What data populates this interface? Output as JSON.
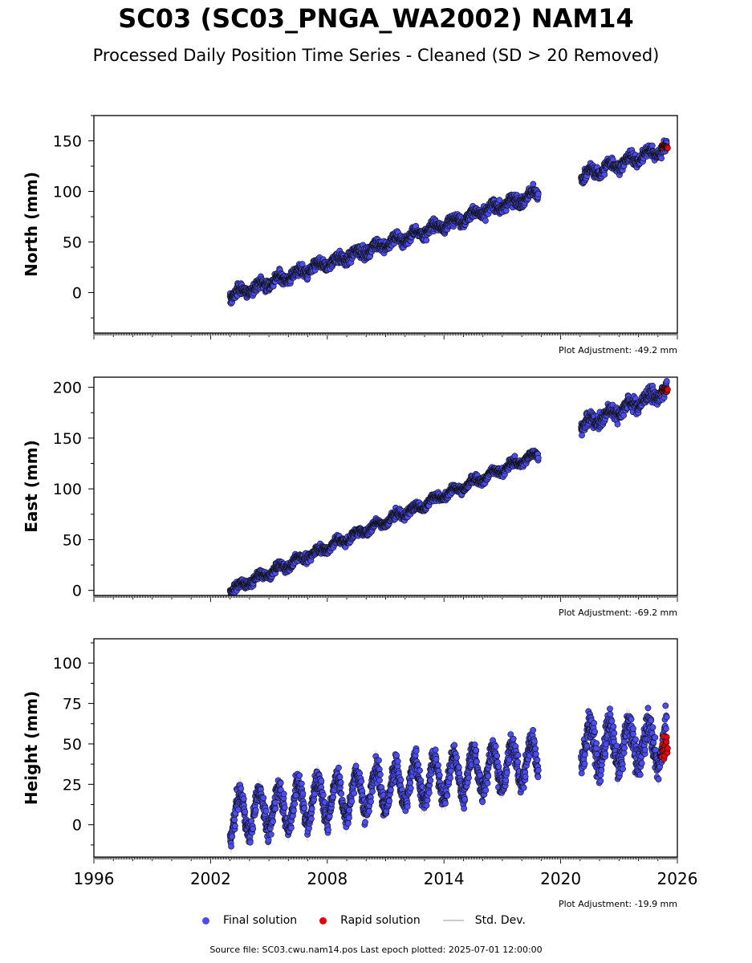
{
  "header": {
    "title": "SC03 (SC03_PNGA_WA2002) NAM14",
    "subtitle": "Processed Daily Position Time Series - Cleaned (SD > 20 Removed)"
  },
  "colors": {
    "final": "#4b4cf2",
    "rapid": "#e8000a",
    "stddev": "#bbbbbb",
    "edge": "#111111"
  },
  "chart_data": [
    {
      "type": "scatter",
      "name": "north",
      "ylabel": "North (mm)",
      "ylim": [
        -40,
        175
      ],
      "yticks": [
        0,
        50,
        100,
        150
      ],
      "xlim": [
        1996.0,
        2026.0
      ],
      "xticks": [
        1996,
        2002,
        2008,
        2014,
        2020,
        2026
      ],
      "plot_adjustment": "Plot Adjustment: -49.2 mm",
      "segments": [
        {
          "x0": 2003.0,
          "x1": 2018.85,
          "y0": -3,
          "y1": 98,
          "amp": 3.5,
          "noise": 4
        },
        {
          "x0": 2021.05,
          "x1": 2025.45,
          "y0": 115,
          "y1": 143,
          "amp": 4,
          "noise": 4
        }
      ],
      "rapid": {
        "x0": 2025.2,
        "x1": 2025.5,
        "y": 144,
        "noise": 1
      }
    },
    {
      "type": "scatter",
      "name": "east",
      "ylabel": "East (mm)",
      "ylim": [
        -5,
        210
      ],
      "yticks": [
        0,
        50,
        100,
        150,
        200
      ],
      "xlim": [
        1996.0,
        2026.0
      ],
      "xticks": [
        1996,
        2002,
        2008,
        2014,
        2020,
        2026
      ],
      "plot_adjustment": "Plot Adjustment: -69.2 mm",
      "segments": [
        {
          "x0": 2003.0,
          "x1": 2018.85,
          "y0": 0,
          "y1": 135,
          "amp": 3,
          "noise": 3
        },
        {
          "x0": 2021.05,
          "x1": 2025.45,
          "y0": 162,
          "y1": 197,
          "amp": 4,
          "noise": 5
        }
      ],
      "rapid": {
        "x0": 2025.2,
        "x1": 2025.5,
        "y": 197,
        "noise": 1.5
      }
    },
    {
      "type": "scatter",
      "name": "height",
      "ylabel": "Height (mm)",
      "ylim": [
        -20,
        115
      ],
      "yticks": [
        0,
        25,
        50,
        75,
        100
      ],
      "xlim": [
        1996.0,
        2026.0
      ],
      "xticks": [
        1996,
        2002,
        2008,
        2014,
        2020,
        2026
      ],
      "plot_adjustment": "Plot Adjustment: -19.9 mm",
      "segments": [
        {
          "x0": 2003.0,
          "x1": 2018.85,
          "y0": 5,
          "y1": 40,
          "amp": 13,
          "noise": 5
        },
        {
          "x0": 2021.05,
          "x1": 2025.45,
          "y0": 48,
          "y1": 50,
          "amp": 13,
          "noise": 7
        }
      ],
      "rapid": {
        "x0": 2025.2,
        "x1": 2025.5,
        "y": 47,
        "noise": 4
      }
    }
  ],
  "legend": {
    "final_label": "Final solution",
    "rapid_label": "Rapid solution",
    "stddev_label": "Std. Dev."
  },
  "footer": {
    "source": "Source file: SC03.cwu.nam14.pos  Last epoch plotted: 2025-07-01 12:00:00"
  }
}
